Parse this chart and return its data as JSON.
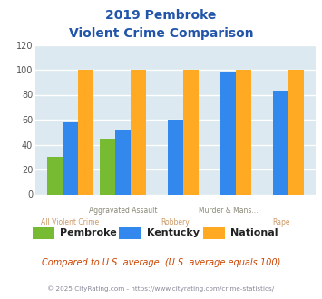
{
  "title_line1": "2019 Pembroke",
  "title_line2": "Violent Crime Comparison",
  "title_color": "#2255aa",
  "categories": [
    "All Violent Crime",
    "Aggravated Assault",
    "Robbery",
    "Murder & Mans...",
    "Rape"
  ],
  "top_labels": [
    "",
    "Aggravated Assault",
    "",
    "Murder & Mans...",
    ""
  ],
  "bottom_labels": [
    "All Violent Crime",
    "",
    "Robbery",
    "",
    "Rape"
  ],
  "pembroke": [
    30,
    45,
    0,
    0,
    0
  ],
  "kentucky": [
    58,
    52,
    60,
    98,
    83
  ],
  "national": [
    100,
    100,
    100,
    100,
    100
  ],
  "pembroke_color": "#77bb33",
  "kentucky_color": "#3388ee",
  "national_color": "#ffaa22",
  "ylim": [
    0,
    120
  ],
  "yticks": [
    0,
    20,
    40,
    60,
    80,
    100,
    120
  ],
  "bg_color": "#dce9f0",
  "fig_bg": "#ffffff",
  "note": "Compared to U.S. average. (U.S. average equals 100)",
  "note_color": "#cc4400",
  "copyright": "© 2025 CityRating.com - https://www.cityrating.com/crime-statistics/",
  "copyright_color": "#888899",
  "grid_color": "#ffffff",
  "legend_labels": [
    "Pembroke",
    "Kentucky",
    "National"
  ],
  "top_label_color": "#888877",
  "bottom_label_color": "#cc9966"
}
